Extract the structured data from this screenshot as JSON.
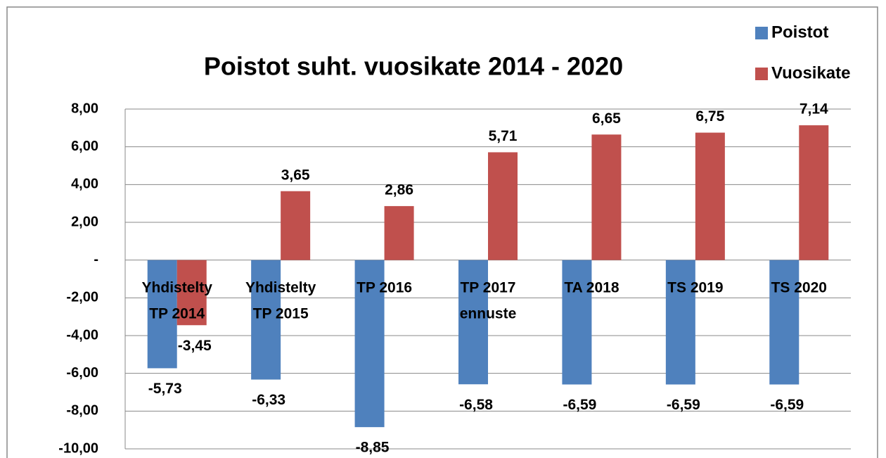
{
  "chart_data": {
    "type": "bar",
    "title": "Poistot suht. vuosikate 2014 - 2020",
    "categories": [
      [
        "Yhdistelty",
        "TP 2014"
      ],
      [
        "Yhdistelty",
        "TP 2015"
      ],
      [
        "TP 2016"
      ],
      [
        "TP 2017",
        "ennuste"
      ],
      [
        "TA 2018"
      ],
      [
        "TS 2019"
      ],
      [
        "TS 2020"
      ]
    ],
    "series": [
      {
        "name": "Poistot",
        "color": "#4f81bd",
        "values": [
          -5.73,
          -6.33,
          -8.85,
          -6.58,
          -6.59,
          -6.59,
          -6.59
        ],
        "value_labels": [
          "-5,73",
          "-6,33",
          "-8,85",
          "-6,58",
          "-6,59",
          "-6,59",
          "-6,59"
        ]
      },
      {
        "name": "Vuosikate",
        "color": "#c0504d",
        "values": [
          -3.45,
          3.65,
          2.86,
          5.71,
          6.65,
          6.75,
          7.14
        ],
        "value_labels": [
          "-3,45",
          "3,65",
          "2,86",
          "5,71",
          "6,65",
          "6,75",
          "7,14"
        ]
      }
    ],
    "ylim": [
      -10,
      8
    ],
    "yticks": [
      {
        "value": -10,
        "label": "-10,00"
      },
      {
        "value": -8,
        "label": "-8,00"
      },
      {
        "value": -6,
        "label": "-6,00"
      },
      {
        "value": -4,
        "label": "-4,00"
      },
      {
        "value": -2,
        "label": "-2,00"
      },
      {
        "value": 0,
        "label": "-"
      },
      {
        "value": 2,
        "label": "2,00"
      },
      {
        "value": 4,
        "label": "4,00"
      },
      {
        "value": 6,
        "label": "6,00"
      },
      {
        "value": 8,
        "label": "8,00"
      }
    ],
    "grid": true,
    "legend": "top-right"
  }
}
